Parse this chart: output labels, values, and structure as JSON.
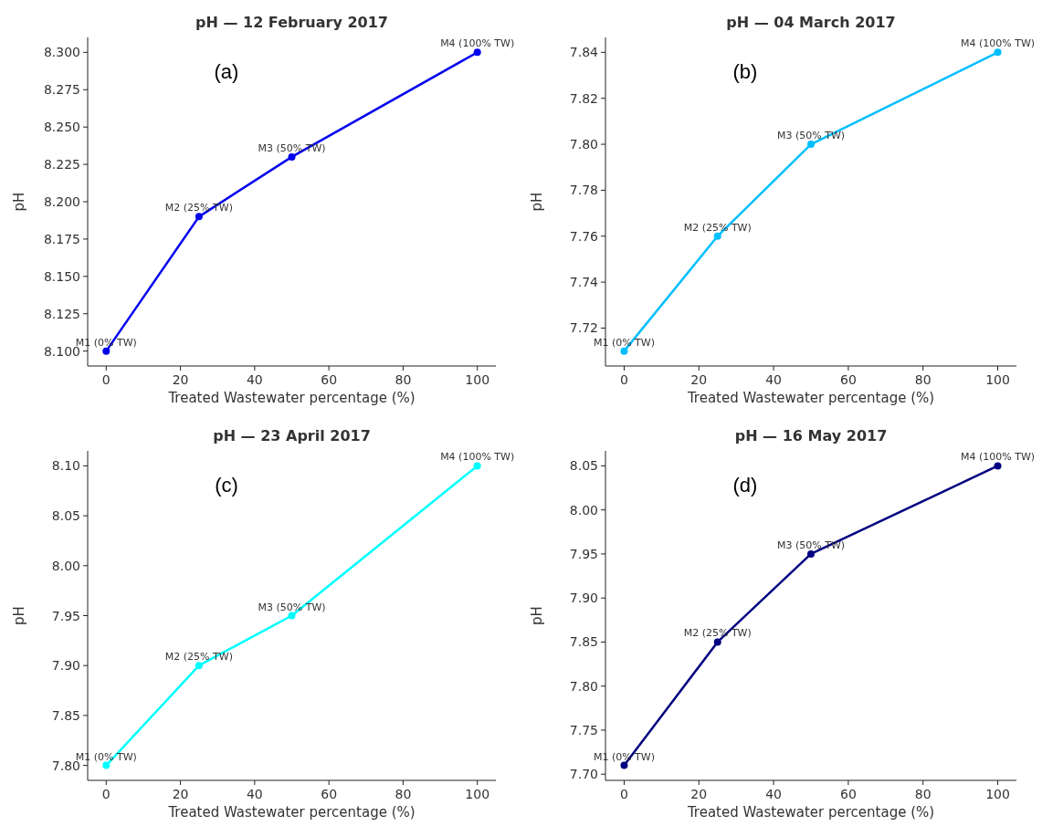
{
  "chart_data": [
    {
      "type": "line",
      "title": "pH — 12 February 2017",
      "xlabel": "Treated Wastewater percentage (%)",
      "ylabel": "pH",
      "x": [
        0,
        25,
        50,
        100
      ],
      "series": [
        {
          "color": "#0000ee",
          "values": [
            8.1,
            8.19,
            8.23,
            8.3
          ]
        }
      ],
      "xlim": [
        -5,
        105
      ],
      "xticks": [
        0,
        20,
        40,
        60,
        80,
        100
      ],
      "ylim": [
        8.09,
        8.31
      ],
      "yticks": [
        {
          "value": 8.1,
          "label": "8.100"
        },
        {
          "value": 8.125,
          "label": "8.125"
        },
        {
          "value": 8.15,
          "label": "8.150"
        },
        {
          "value": 8.175,
          "label": "8.175"
        },
        {
          "value": 8.2,
          "label": "8.200"
        },
        {
          "value": 8.225,
          "label": "8.225"
        },
        {
          "value": 8.25,
          "label": "8.250"
        },
        {
          "value": 8.275,
          "label": "8.275"
        },
        {
          "value": 8.3,
          "label": "8.300"
        }
      ],
      "marker": "circle",
      "line_style": "solid",
      "grid": false,
      "annotations": [
        "(a)",
        {
          "text": "M1 (0% TW)",
          "x": 0,
          "y": 8.1
        },
        {
          "text": "M2 (25% TW)",
          "x": 25,
          "y": 8.19
        },
        {
          "text": "M3 (50% TW)",
          "x": 50,
          "y": 8.23
        },
        {
          "text": "M4 (100% TW)",
          "x": 100,
          "y": 8.3
        }
      ]
    },
    {
      "type": "line",
      "title": "pH — 04 March 2017",
      "xlabel": "Treated Wastewater percentage (%)",
      "ylabel": "pH",
      "x": [
        0,
        25,
        50,
        100
      ],
      "series": [
        {
          "color": "#00bfff",
          "values": [
            7.71,
            7.76,
            7.8,
            7.84
          ]
        }
      ],
      "xlim": [
        -5,
        105
      ],
      "xticks": [
        0,
        20,
        40,
        60,
        80,
        100
      ],
      "ylim": [
        7.7035,
        7.8465
      ],
      "yticks": [
        7.72,
        7.74,
        7.76,
        7.78,
        {
          "value": 7.8,
          "label": "7.80"
        },
        7.82,
        7.84
      ],
      "marker": "circle",
      "line_style": "solid",
      "grid": false,
      "annotations": [
        "(b)",
        {
          "text": "M1 (0% TW)",
          "x": 0,
          "y": 7.71
        },
        {
          "text": "M2 (25% TW)",
          "x": 25,
          "y": 7.76
        },
        {
          "text": "M3 (50% TW)",
          "x": 50,
          "y": 7.8
        },
        {
          "text": "M4 (100% TW)",
          "x": 100,
          "y": 7.84
        }
      ]
    },
    {
      "type": "line",
      "title": "pH — 23 April 2017",
      "xlabel": "Treated Wastewater percentage (%)",
      "ylabel": "pH",
      "x": [
        0,
        25,
        50,
        100
      ],
      "series": [
        {
          "color": "#00ffff",
          "values": [
            7.8,
            7.9,
            7.95,
            8.1
          ]
        }
      ],
      "xlim": [
        -5,
        105
      ],
      "xticks": [
        0,
        20,
        40,
        60,
        80,
        100
      ],
      "ylim": [
        7.785,
        8.115
      ],
      "yticks": [
        {
          "value": 7.8,
          "label": "7.80"
        },
        7.85,
        {
          "value": 7.9,
          "label": "7.90"
        },
        7.95,
        {
          "value": 8,
          "label": "8.00"
        },
        8.05,
        {
          "value": 8.1,
          "label": "8.10"
        }
      ],
      "marker": "circle",
      "line_style": "solid",
      "grid": false,
      "annotations": [
        "(c)",
        {
          "text": "M1 (0% TW)",
          "x": 0,
          "y": 7.8
        },
        {
          "text": "M2 (25% TW)",
          "x": 25,
          "y": 7.9
        },
        {
          "text": "M3 (50% TW)",
          "x": 50,
          "y": 7.95
        },
        {
          "text": "M4 (100% TW)",
          "x": 100,
          "y": 8.1
        }
      ]
    },
    {
      "type": "line",
      "title": "pH — 16 May 2017",
      "xlabel": "Treated Wastewater percentage (%)",
      "ylabel": "pH",
      "x": [
        0,
        25,
        50,
        100
      ],
      "series": [
        {
          "color": "#000080",
          "values": [
            7.71,
            7.85,
            7.95,
            8.05
          ]
        }
      ],
      "xlim": [
        -5,
        105
      ],
      "xticks": [
        0,
        20,
        40,
        60,
        80,
        100
      ],
      "ylim": [
        7.693,
        8.067
      ],
      "yticks": [
        {
          "value": 7.7,
          "label": "7.70"
        },
        7.75,
        {
          "value": 7.8,
          "label": "7.80"
        },
        7.85,
        {
          "value": 7.9,
          "label": "7.90"
        },
        7.95,
        {
          "value": 8,
          "label": "8.00"
        },
        8.05
      ],
      "marker": "circle",
      "line_style": "solid",
      "grid": false,
      "annotations": [
        "(d)",
        {
          "text": "M1 (0% TW)",
          "x": 0,
          "y": 7.71
        },
        {
          "text": "M2 (25% TW)",
          "x": 25,
          "y": 7.85
        },
        {
          "text": "M3 (50% TW)",
          "x": 50,
          "y": 7.95
        },
        {
          "text": "M4 (100% TW)",
          "x": 100,
          "y": 8.05
        }
      ]
    }
  ]
}
